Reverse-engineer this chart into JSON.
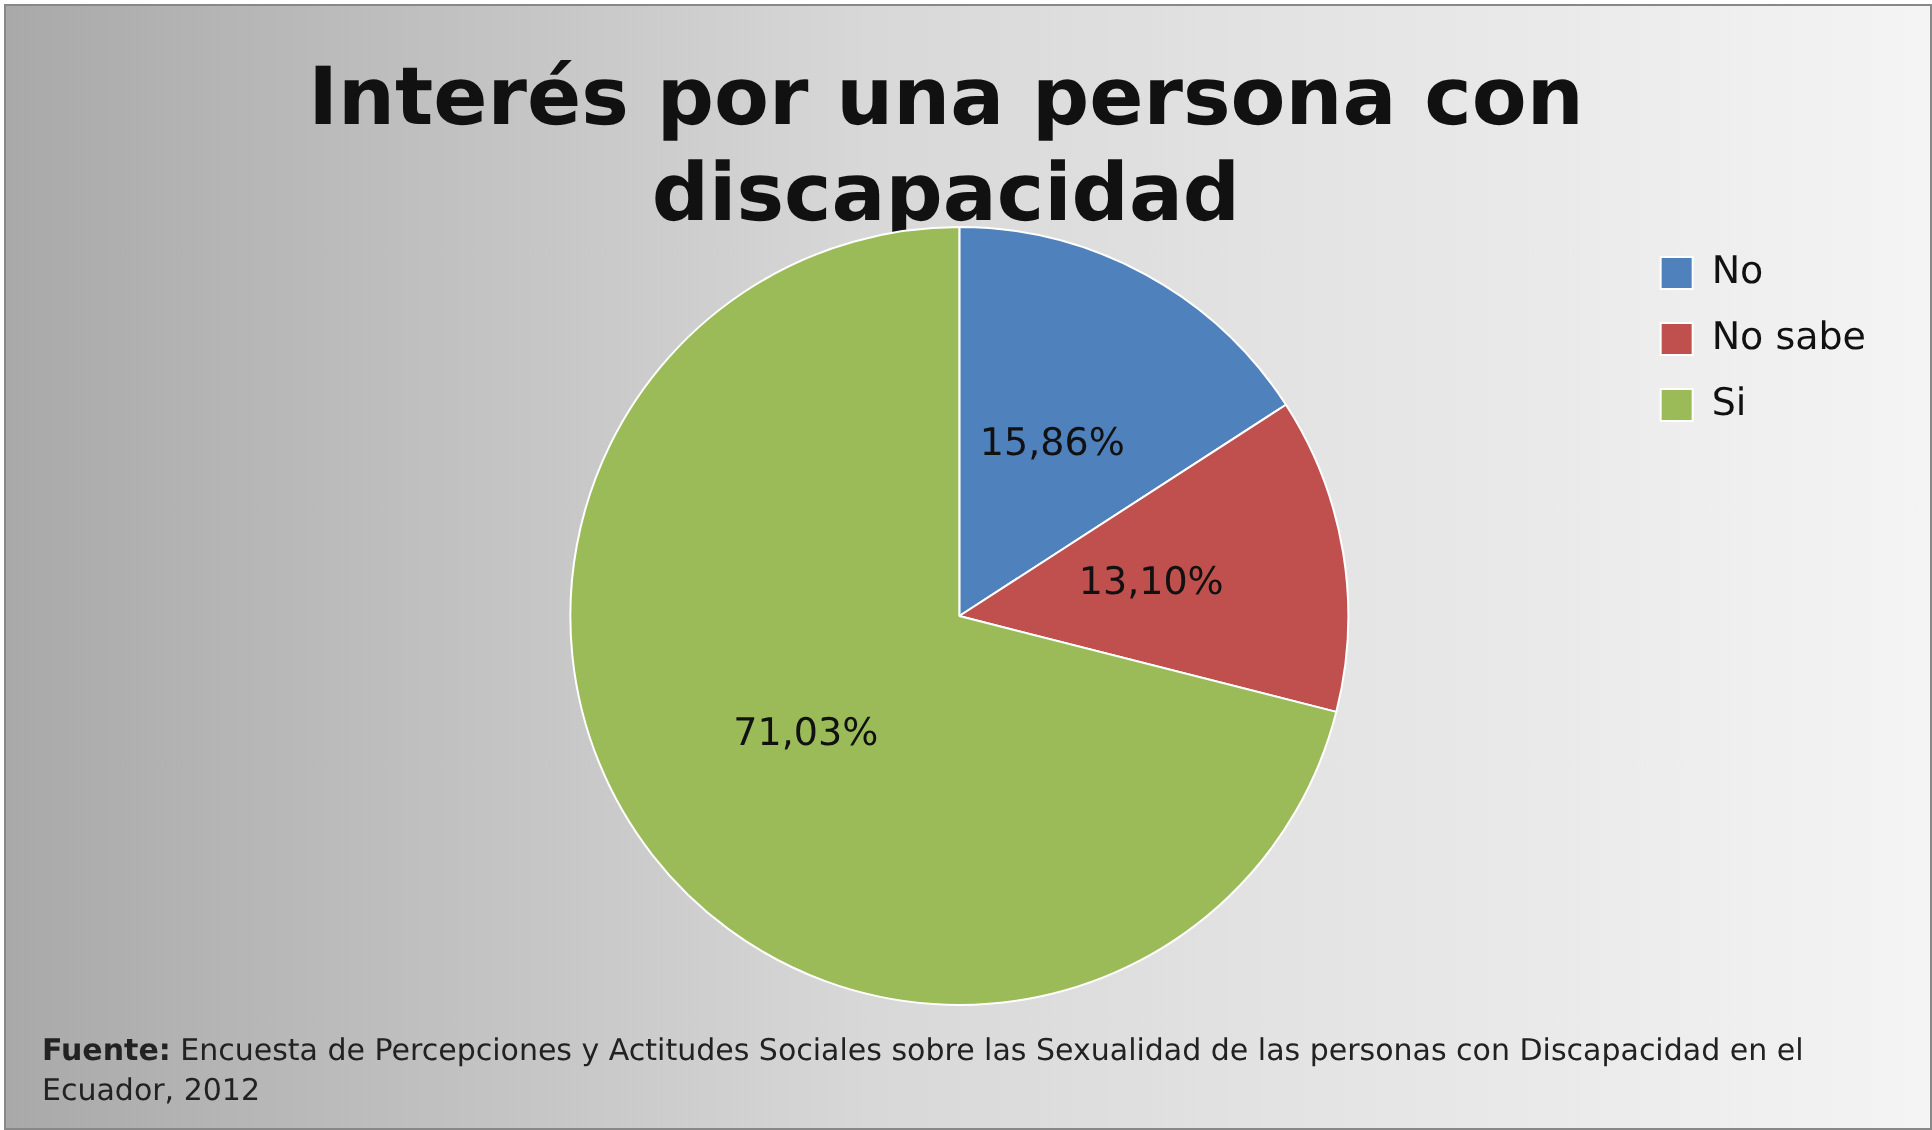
{
  "chart_data": {
    "type": "pie",
    "title": "Interés por una persona con discapacidad",
    "categories": [
      "No",
      "No sabe",
      "Si"
    ],
    "values": [
      15.86,
      13.1,
      71.03
    ],
    "colors": [
      "#4f81bd",
      "#c0504d",
      "#9bbb59"
    ],
    "value_labels": [
      "15,86%",
      "13,10%",
      "71,03%"
    ],
    "legend": "top right",
    "annotations": [
      "Fuente: Encuesta de Percepciones y Actitudes Sociales sobre las Sexualidad de las personas con Discapacidad en el Ecuador, 2012"
    ]
  }
}
